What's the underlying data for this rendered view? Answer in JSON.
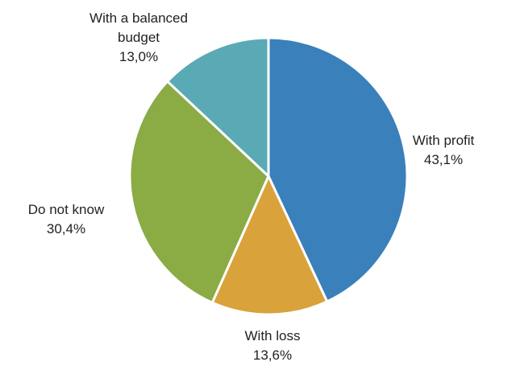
{
  "chart_data": {
    "type": "pie",
    "title": "",
    "start": "12 o'clock",
    "direction": "clockwise",
    "slices": [
      {
        "label_lines": [
          "With profit"
        ],
        "label": "With profit",
        "value": 43.1,
        "value_text": "43,1%",
        "color": "#3a80bb"
      },
      {
        "label_lines": [
          "With loss"
        ],
        "label": "With loss",
        "value": 13.6,
        "value_text": "13,6%",
        "color": "#d9a23a"
      },
      {
        "label_lines": [
          "Do not know"
        ],
        "label": "Do not know",
        "value": 30.4,
        "value_text": "30,4%",
        "color": "#8bab45"
      },
      {
        "label_lines": [
          "With a balanced",
          "budget"
        ],
        "label": "With a balanced budget",
        "value": 13.0,
        "value_text": "13,0%",
        "color": "#5aaab6"
      }
    ]
  }
}
